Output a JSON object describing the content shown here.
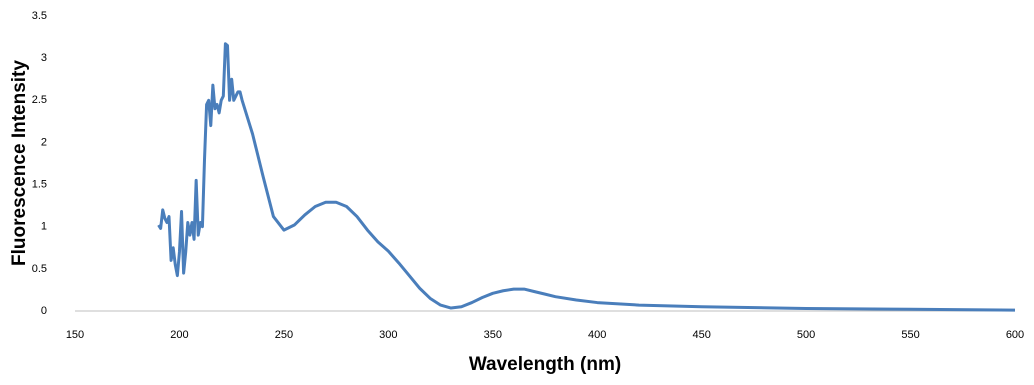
{
  "chart_data": {
    "type": "line",
    "x_label": "Wavelength (nm)",
    "y_label": "Fluorescence Intensity",
    "color": "#4a7ebb",
    "x": [
      190,
      191,
      192,
      193,
      194,
      195,
      196,
      197,
      198,
      199,
      200,
      201,
      202,
      203,
      204,
      205,
      206,
      207,
      208,
      209,
      210,
      211,
      212,
      213,
      214,
      215,
      216,
      217,
      218,
      219,
      220,
      221,
      222,
      223,
      224,
      225,
      226,
      227,
      228,
      229,
      230,
      235,
      240,
      245,
      250,
      255,
      260,
      265,
      270,
      275,
      280,
      285,
      290,
      295,
      300,
      305,
      310,
      315,
      320,
      325,
      330,
      335,
      340,
      345,
      350,
      355,
      360,
      365,
      370,
      375,
      380,
      390,
      400,
      420,
      450,
      500,
      550,
      600
    ],
    "values": [
      1.02,
      0.98,
      1.2,
      1.1,
      1.05,
      1.12,
      0.6,
      0.75,
      0.55,
      0.42,
      0.7,
      1.18,
      0.45,
      0.7,
      1.05,
      0.9,
      1.05,
      0.85,
      1.55,
      0.9,
      1.05,
      1.0,
      1.8,
      2.45,
      2.5,
      2.2,
      2.68,
      2.4,
      2.45,
      2.35,
      2.5,
      2.55,
      3.17,
      3.15,
      2.5,
      2.75,
      2.5,
      2.55,
      2.6,
      2.6,
      2.5,
      2.1,
      1.6,
      1.12,
      0.96,
      1.02,
      1.14,
      1.24,
      1.29,
      1.29,
      1.24,
      1.12,
      0.96,
      0.82,
      0.71,
      0.57,
      0.42,
      0.27,
      0.15,
      0.07,
      0.035,
      0.05,
      0.1,
      0.16,
      0.21,
      0.24,
      0.26,
      0.26,
      0.23,
      0.2,
      0.17,
      0.13,
      0.1,
      0.07,
      0.05,
      0.03,
      0.02,
      0.01
    ],
    "xlim": [
      150,
      600
    ],
    "xticks": [
      150,
      200,
      250,
      300,
      350,
      400,
      450,
      500,
      550,
      600
    ],
    "ylim": [
      0,
      3.5
    ],
    "yticks": [
      0,
      0.5,
      1,
      1.5,
      2,
      2.5,
      3,
      3.5
    ],
    "grid": false
  }
}
